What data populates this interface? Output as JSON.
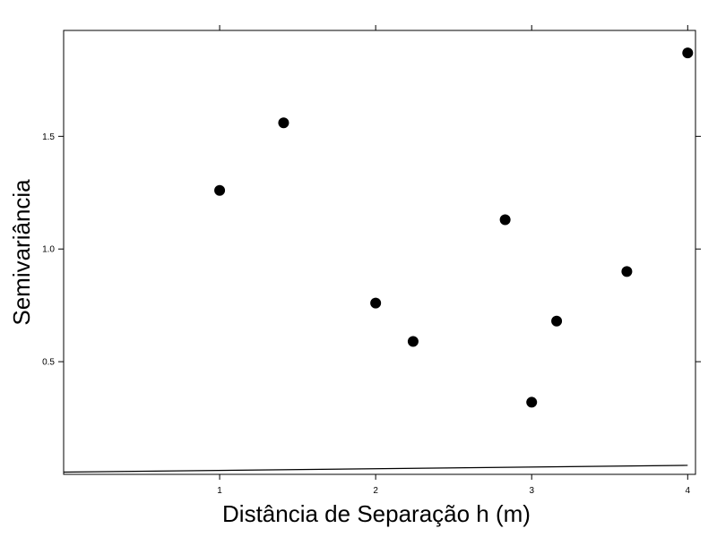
{
  "chart_data": {
    "type": "scatter",
    "title": "",
    "xlabel": "Distância de Separação h (m)",
    "ylabel": "Semivariância",
    "xlim": [
      0.0,
      4.05
    ],
    "ylim": [
      0.0,
      1.97
    ],
    "xticks": [
      1,
      2,
      3,
      4
    ],
    "xtick_labels": [
      "1",
      "2",
      "3",
      "4"
    ],
    "yticks": [
      0.5,
      1.0,
      1.5
    ],
    "ytick_labels": [
      "0.5",
      "1.0",
      "1.5"
    ],
    "grid": false,
    "legend": "none",
    "points": [
      {
        "x": 1.0,
        "y": 1.26
      },
      {
        "x": 1.41,
        "y": 1.56
      },
      {
        "x": 2.0,
        "y": 0.76
      },
      {
        "x": 2.24,
        "y": 0.59
      },
      {
        "x": 2.83,
        "y": 1.13
      },
      {
        "x": 3.0,
        "y": 0.32
      },
      {
        "x": 3.16,
        "y": 0.68
      },
      {
        "x": 3.61,
        "y": 0.9
      },
      {
        "x": 4.0,
        "y": 1.87
      }
    ],
    "fitted_line": {
      "x": [
        0.0,
        4.0
      ],
      "y": [
        0.01,
        0.04
      ]
    },
    "colors": {
      "points": "#000000",
      "line": "#000000",
      "axes": "#000000"
    }
  }
}
